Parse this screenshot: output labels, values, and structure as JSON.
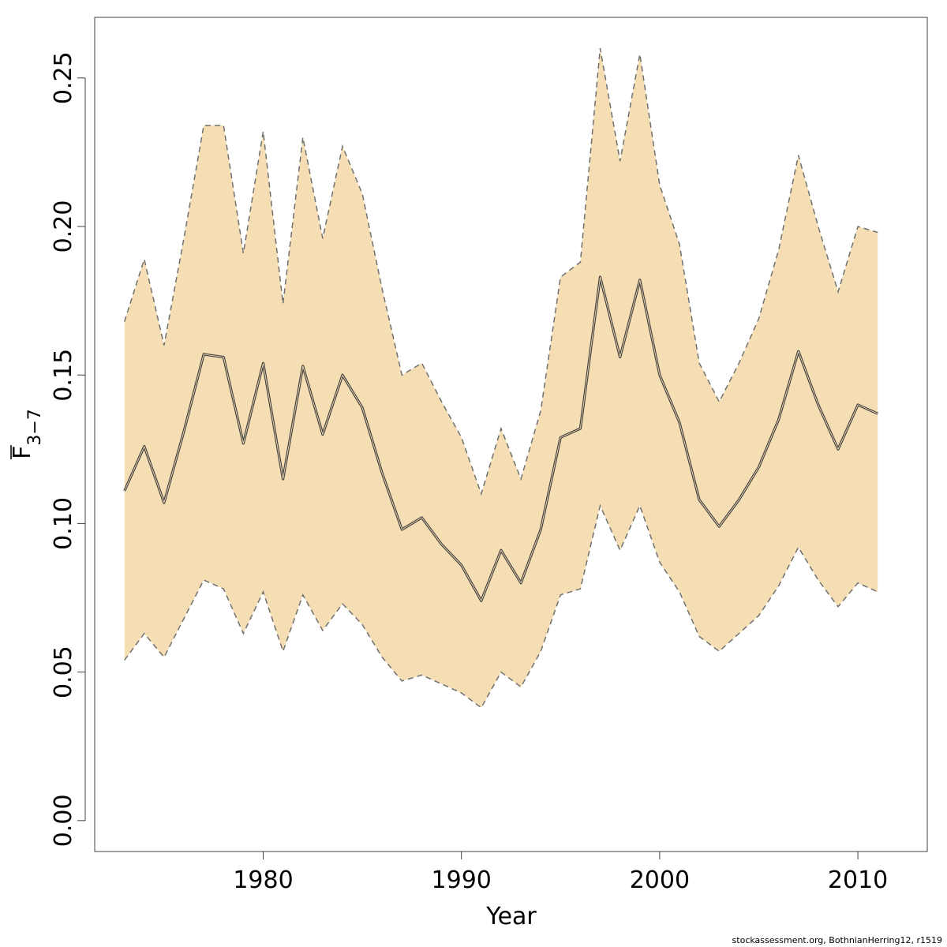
{
  "chart_data": {
    "type": "area",
    "title": "",
    "xlabel": "Year",
    "ylabel_main": "F",
    "ylabel_sub": "3−7",
    "xlim": [
      1971.5,
      2013.5
    ],
    "ylim": [
      -0.0104,
      0.2704
    ],
    "x_ticks": [
      1980,
      1990,
      2000,
      2010
    ],
    "x_tick_labels": [
      "1980",
      "1990",
      "2000",
      "2010"
    ],
    "y_ticks": [
      0.0,
      0.05,
      0.1,
      0.15,
      0.2,
      0.25
    ],
    "y_tick_labels": [
      "0.00",
      "0.05",
      "0.10",
      "0.15",
      "0.20",
      "0.25"
    ],
    "grid": false,
    "colors": {
      "band": "#f5deb3",
      "bounds": "#707070",
      "estimate": "#404040"
    },
    "x": [
      1973,
      1974,
      1975,
      1976,
      1977,
      1978,
      1979,
      1980,
      1981,
      1982,
      1983,
      1984,
      1985,
      1986,
      1987,
      1988,
      1989,
      1990,
      1991,
      1992,
      1993,
      1994,
      1995,
      1996,
      1997,
      1998,
      1999,
      2000,
      2001,
      2002,
      2003,
      2004,
      2005,
      2006,
      2007,
      2008,
      2009,
      2010,
      2011
    ],
    "series": [
      {
        "role": "estimate",
        "values": [
          0.111,
          0.126,
          0.107,
          0.131,
          0.157,
          0.156,
          0.127,
          0.154,
          0.115,
          0.153,
          0.13,
          0.15,
          0.139,
          0.117,
          0.098,
          0.102,
          0.093,
          0.086,
          0.074,
          0.091,
          0.08,
          0.098,
          0.129,
          0.132,
          0.183,
          0.156,
          0.182,
          0.15,
          0.134,
          0.108,
          0.099,
          0.108,
          0.119,
          0.135,
          0.158,
          0.14,
          0.125,
          0.14,
          0.137
        ]
      },
      {
        "role": "upper",
        "values": [
          0.168,
          0.189,
          0.16,
          0.196,
          0.234,
          0.234,
          0.191,
          0.232,
          0.174,
          0.23,
          0.196,
          0.227,
          0.211,
          0.179,
          0.15,
          0.154,
          0.141,
          0.129,
          0.11,
          0.132,
          0.115,
          0.138,
          0.183,
          0.188,
          0.26,
          0.222,
          0.258,
          0.214,
          0.194,
          0.154,
          0.141,
          0.154,
          0.169,
          0.192,
          0.224,
          0.2,
          0.178,
          0.2,
          0.198
        ]
      },
      {
        "role": "lower",
        "values": [
          0.054,
          0.063,
          0.055,
          0.068,
          0.081,
          0.078,
          0.063,
          0.077,
          0.057,
          0.076,
          0.064,
          0.073,
          0.066,
          0.055,
          0.047,
          0.049,
          0.046,
          0.043,
          0.038,
          0.05,
          0.045,
          0.057,
          0.076,
          0.078,
          0.106,
          0.091,
          0.106,
          0.087,
          0.077,
          0.062,
          0.057,
          0.063,
          0.069,
          0.079,
          0.092,
          0.081,
          0.072,
          0.08,
          0.077
        ]
      }
    ],
    "credit": "stockassessment.org, BothnianHerring12, r1519"
  }
}
